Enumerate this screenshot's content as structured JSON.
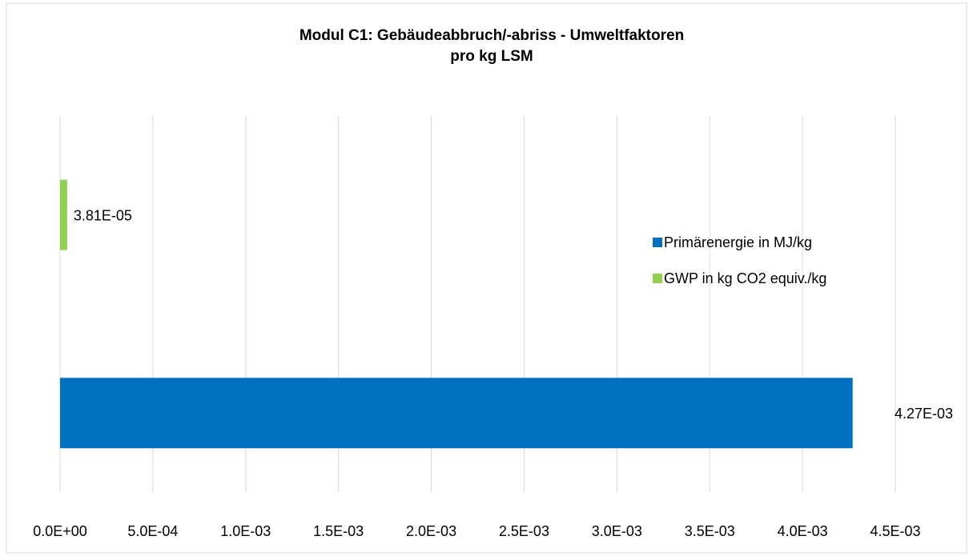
{
  "chart_data": {
    "type": "bar",
    "orientation": "horizontal",
    "title": [
      "Modul C1: Gebäudeabbruch/-abriss - Umweltfaktoren",
      "pro kg LSM"
    ],
    "categories": [
      null
    ],
    "series": [
      {
        "name": "Primärenergie in MJ/kg",
        "color": "#0070c0",
        "values": [
          0.00427
        ],
        "value_labels": [
          "4.27E-03"
        ]
      },
      {
        "name": "GWP in kg CO2 equiv./kg",
        "color": "#92d050",
        "values": [
          3.81e-05
        ],
        "value_labels": [
          "3.81E-05"
        ]
      }
    ],
    "xlim": [
      0,
      0.0045
    ],
    "xticks": [
      {
        "value": 0,
        "label": "0.0E+00"
      },
      {
        "value": 0.0005,
        "label": "5.0E-04"
      },
      {
        "value": 0.001,
        "label": "1.0E-03"
      },
      {
        "value": 0.0015,
        "label": "1.5E-03"
      },
      {
        "value": 0.002,
        "label": "2.0E-03"
      },
      {
        "value": 0.0025,
        "label": "2.5E-03"
      },
      {
        "value": 0.003,
        "label": "3.0E-03"
      },
      {
        "value": 0.0035,
        "label": "3.5E-03"
      },
      {
        "value": 0.004,
        "label": "4.0E-03"
      },
      {
        "value": 0.0045,
        "label": "4.5E-03"
      }
    ],
    "grid": true,
    "legend": "right"
  }
}
